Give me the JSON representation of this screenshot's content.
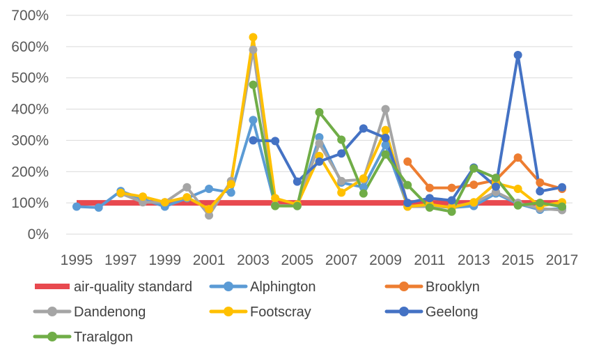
{
  "chart_data": {
    "type": "line",
    "x": [
      1995,
      1996,
      1997,
      1998,
      1999,
      2000,
      2001,
      2002,
      2003,
      2004,
      2005,
      2006,
      2007,
      2008,
      2009,
      2010,
      2011,
      2012,
      2013,
      2014,
      2015,
      2016,
      2017
    ],
    "x_tick_labels": [
      "1995",
      "1997",
      "1999",
      "2001",
      "2003",
      "2005",
      "2007",
      "2009",
      "2011",
      "2013",
      "2015",
      "2017"
    ],
    "y_tick_labels": [
      "0%",
      "100%",
      "200%",
      "300%",
      "400%",
      "500%",
      "600%",
      "700%"
    ],
    "ylim": [
      0,
      700
    ],
    "y_unit": "%",
    "grid": "horizontal",
    "legend_position": "bottom",
    "series": [
      {
        "name": "air-quality standard",
        "color": "#e8494f",
        "markers": false,
        "width": 8,
        "values": [
          100,
          100,
          100,
          100,
          100,
          100,
          100,
          100,
          100,
          100,
          100,
          100,
          100,
          100,
          100,
          100,
          100,
          100,
          100,
          100,
          100,
          100,
          100
        ]
      },
      {
        "name": "Alphington",
        "color": "#5b9bd5",
        "markers": true,
        "width": 4,
        "values": [
          88,
          85,
          138,
          112,
          88,
          115,
          145,
          133,
          365,
          92,
          90,
          310,
          165,
          150,
          285,
          90,
          90,
          85,
          90,
          130,
          97,
          78,
          82
        ]
      },
      {
        "name": "Brooklyn",
        "color": "#ed7d31",
        "markers": true,
        "width": 4,
        "values": [
          null,
          null,
          null,
          null,
          null,
          null,
          null,
          null,
          null,
          null,
          null,
          null,
          null,
          null,
          null,
          232,
          148,
          148,
          158,
          173,
          245,
          165,
          145
        ]
      },
      {
        "name": "Dandenong",
        "color": "#a5a5a5",
        "markers": true,
        "width": 4,
        "values": [
          null,
          null,
          130,
          102,
          102,
          150,
          60,
          170,
          590,
          92,
          90,
          290,
          170,
          175,
          400,
          88,
          88,
          88,
          100,
          135,
          100,
          82,
          77
        ]
      },
      {
        "name": "Footscray",
        "color": "#ffc000",
        "markers": true,
        "width": 4,
        "values": [
          null,
          null,
          132,
          120,
          102,
          118,
          80,
          160,
          630,
          115,
          95,
          250,
          133,
          178,
          333,
          88,
          95,
          85,
          102,
          163,
          145,
          90,
          102
        ]
      },
      {
        "name": "Geelong",
        "color": "#4472c4",
        "markers": true,
        "width": 4,
        "values": [
          null,
          null,
          null,
          null,
          null,
          null,
          null,
          null,
          300,
          298,
          168,
          232,
          258,
          338,
          308,
          100,
          115,
          108,
          213,
          152,
          573,
          137,
          150
        ]
      },
      {
        "name": "Traralgon",
        "color": "#70ad47",
        "markers": true,
        "width": 4,
        "values": [
          null,
          null,
          null,
          null,
          null,
          null,
          null,
          null,
          478,
          90,
          90,
          390,
          302,
          130,
          255,
          157,
          85,
          72,
          210,
          180,
          92,
          100,
          88
        ]
      }
    ]
  }
}
